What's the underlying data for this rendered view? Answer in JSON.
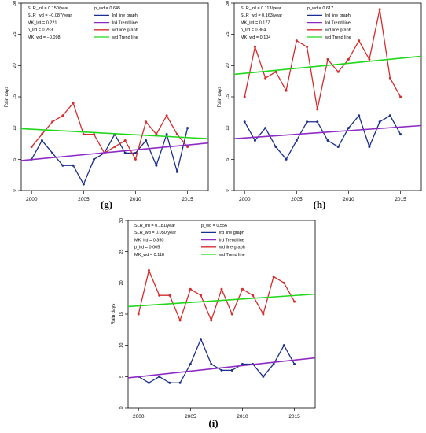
{
  "chart_data": [
    {
      "type": "line",
      "panel_label": "(g)",
      "ylabel": "Rain days",
      "xlim": [
        1999,
        2017
      ],
      "ylim": [
        0,
        30
      ],
      "x_ticks": [
        2000,
        2005,
        2010,
        2015
      ],
      "y_ticks": [
        0,
        5,
        10,
        15,
        20,
        25,
        30
      ],
      "x": [
        2000,
        2001,
        2002,
        2003,
        2004,
        2005,
        2006,
        2007,
        2008,
        2009,
        2010,
        2011,
        2012,
        2013,
        2014,
        2015
      ],
      "series": [
        {
          "name": "lrd line graph",
          "color": "#1a2e8c",
          "kind": "line",
          "values": [
            5,
            8,
            6,
            4,
            4,
            1,
            5,
            6,
            9,
            6,
            6,
            8,
            4,
            9,
            3,
            10
          ]
        },
        {
          "name": "wd line graph",
          "color": "#d42c2c",
          "kind": "line",
          "values": [
            7,
            9,
            11,
            12,
            14,
            9,
            9,
            6,
            7,
            8,
            5,
            11,
            9,
            12,
            9,
            7
          ]
        },
        {
          "name": "lrd Trend line",
          "color": "#8e2bc5",
          "kind": "trend",
          "start": [
            1999,
            4.8
          ],
          "end": [
            2017,
            7.6
          ]
        },
        {
          "name": "wd Trend line",
          "color": "#22d61c",
          "kind": "trend",
          "start": [
            1999,
            9.9
          ],
          "end": [
            2017,
            8.3
          ]
        }
      ],
      "stats_left": [
        "SLR_lrd = 0.150/year",
        "SLR_wd = −0.087/year",
        "MK_lrd = 0.221",
        "p_lrd = 0.293",
        "MK_wd = −0.098"
      ],
      "stats_right": [
        "p_wd = 0.645"
      ],
      "legend_entries": [
        "lrd line graph",
        "lrd Trend line",
        "wd line graph",
        "wd Trend line"
      ]
    },
    {
      "type": "line",
      "panel_label": "(h)",
      "ylabel": "Rain days",
      "xlim": [
        1999,
        2017
      ],
      "ylim": [
        0,
        30
      ],
      "x_ticks": [
        2000,
        2005,
        2010,
        2015
      ],
      "y_ticks": [
        0,
        5,
        10,
        15,
        20,
        25,
        30
      ],
      "x": [
        2000,
        2001,
        2002,
        2003,
        2004,
        2005,
        2006,
        2007,
        2008,
        2009,
        2010,
        2011,
        2012,
        2013,
        2014,
        2015
      ],
      "series": [
        {
          "name": "lrd line graph",
          "color": "#1a2e8c",
          "kind": "line",
          "values": [
            11,
            8,
            10,
            7,
            5,
            8,
            11,
            11,
            8,
            7,
            10,
            12,
            7,
            11,
            12,
            9
          ]
        },
        {
          "name": "wd line graph",
          "color": "#d42c2c",
          "kind": "line",
          "values": [
            15,
            23,
            18,
            19,
            16,
            24,
            23,
            13,
            21,
            19,
            21,
            24,
            21,
            29,
            18,
            15
          ]
        },
        {
          "name": "lrd Trend line",
          "color": "#8e2bc5",
          "kind": "trend",
          "start": [
            1999,
            8.3
          ],
          "end": [
            2017,
            10.4
          ]
        },
        {
          "name": "wd Trend line",
          "color": "#22d61c",
          "kind": "trend",
          "start": [
            1999,
            18.6
          ],
          "end": [
            2017,
            21.5
          ]
        }
      ],
      "stats_left": [
        "SLR_lrd = 0.113/year",
        "SLR_wd = 0.163/year",
        "MK_lrd = 0.177",
        "p_lrd = 0.364",
        "MK_wd = 0.104"
      ],
      "stats_right": [
        "p_wd = 0.617"
      ],
      "legend_entries": [
        "lrd line graph",
        "lrd Trend line",
        "wd line graph",
        "wd Trend line"
      ]
    },
    {
      "type": "line",
      "panel_label": "(i)",
      "ylabel": "Rain days",
      "xlim": [
        1999,
        2017
      ],
      "ylim": [
        0,
        30
      ],
      "x_ticks": [
        2000,
        2005,
        2010,
        2015
      ],
      "y_ticks": [
        0,
        5,
        10,
        15,
        20,
        25,
        30
      ],
      "x": [
        2000,
        2001,
        2002,
        2003,
        2004,
        2005,
        2006,
        2007,
        2008,
        2009,
        2010,
        2011,
        2012,
        2013,
        2014,
        2015
      ],
      "series": [
        {
          "name": "lrd line graph",
          "color": "#1a2e8c",
          "kind": "line",
          "values": [
            5,
            4,
            5,
            4,
            4,
            7,
            11,
            7,
            6,
            6,
            7,
            7,
            5,
            7,
            10,
            7
          ]
        },
        {
          "name": "wd line graph",
          "color": "#d42c2c",
          "kind": "line",
          "values": [
            15,
            22,
            18,
            18,
            14,
            19,
            18,
            14,
            19,
            15,
            19,
            18,
            15,
            21,
            20,
            17
          ]
        },
        {
          "name": "lrd Trend line",
          "color": "#8e2bc5",
          "kind": "trend",
          "start": [
            1999,
            4.8
          ],
          "end": [
            2017,
            8.0
          ]
        },
        {
          "name": "wd Trend line",
          "color": "#22d61c",
          "kind": "trend",
          "start": [
            1999,
            16.2
          ],
          "end": [
            2017,
            18.2
          ]
        }
      ],
      "stats_left": [
        "SLR_lrd = 0.181/year",
        "SLR_wd = 0.050/year",
        "MK_lrd = 0.350",
        "p_lrd = 0.065",
        "MK_wd = 0.118"
      ],
      "stats_right": [
        "p_wd = 0.556"
      ],
      "legend_entries": [
        "lrd line graph",
        "lrd Trend line",
        "wd line graph",
        "wd Trend line"
      ]
    }
  ]
}
